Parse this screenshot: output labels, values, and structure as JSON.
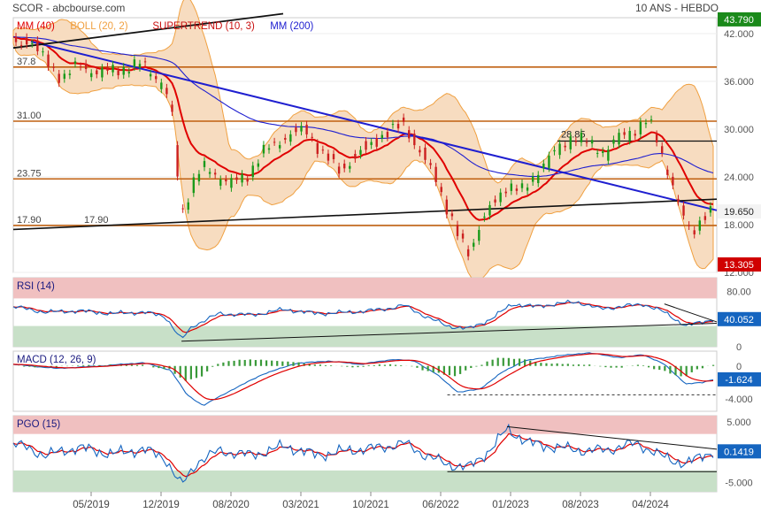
{
  "header": {
    "left": "SCOR - abcbourse.com",
    "right": "10 ANS - HEBDO"
  },
  "colors": {
    "mm40": "#e00000",
    "boll": "#f0a040",
    "boll_fill": "#f7dcc0",
    "supertrend": "#c81010",
    "mm200": "#1f1fd0",
    "price_box": "#1a8a1a",
    "low_box": "#d00000",
    "rsi": "#1565c0",
    "macd": "#1565c0",
    "signal": "#e00000",
    "hist": "#3a9a3a",
    "upper_band": "#f0c0c0",
    "lower_band": "#c8e0c8",
    "horizontal": "#c06010",
    "trend": "#111111",
    "candle_up": "#1a9a1a",
    "candle_dn": "#cc2020"
  },
  "chart_data": [
    {
      "type": "candlestick",
      "legend": [
        "MM (40)",
        "BOLL (20, 2)",
        "SUPERTREND (10, 3)",
        "MM (200)"
      ],
      "y_ticks": [
        "42.000",
        "36.000",
        "30.000",
        "24.000",
        "18.000",
        "12.000"
      ],
      "ylim": [
        12,
        44
      ],
      "last_price": "19.650",
      "high_label": "43.790",
      "low_label": "13.305",
      "levels": [
        {
          "label": "37.8",
          "value": 37.8
        },
        {
          "label": "31.00",
          "value": 31.0
        },
        {
          "label": "23.75",
          "value": 23.75
        },
        {
          "label": "17.90",
          "value": 17.9
        }
      ],
      "level_label_mid": "17.90",
      "annotation": "28.85",
      "x_ticks": [
        "05/2019",
        "12/2019",
        "08/2020",
        "03/2021",
        "10/2021",
        "06/2022",
        "01/2023",
        "08/2023",
        "04/2024"
      ],
      "series": [
        {
          "t": 0,
          "v": 40.5
        },
        {
          "t": 3,
          "v": 41.5
        },
        {
          "t": 6,
          "v": 38.5
        },
        {
          "t": 9,
          "v": 36.5
        },
        {
          "t": 12,
          "v": 38
        },
        {
          "t": 16,
          "v": 37
        },
        {
          "t": 20,
          "v": 37.5
        },
        {
          "t": 24,
          "v": 38
        },
        {
          "t": 27,
          "v": 36
        },
        {
          "t": 29,
          "v": 33
        },
        {
          "t": 31,
          "v": 19
        },
        {
          "t": 33,
          "v": 23
        },
        {
          "t": 35,
          "v": 25
        },
        {
          "t": 38,
          "v": 24
        },
        {
          "t": 40,
          "v": 23
        },
        {
          "t": 43,
          "v": 24
        },
        {
          "t": 46,
          "v": 27
        },
        {
          "t": 50,
          "v": 29
        },
        {
          "t": 54,
          "v": 30
        },
        {
          "t": 57,
          "v": 27
        },
        {
          "t": 60,
          "v": 25
        },
        {
          "t": 64,
          "v": 27
        },
        {
          "t": 67,
          "v": 29
        },
        {
          "t": 70,
          "v": 30
        },
        {
          "t": 72,
          "v": 31
        },
        {
          "t": 75,
          "v": 27
        },
        {
          "t": 78,
          "v": 24
        },
        {
          "t": 80,
          "v": 20
        },
        {
          "t": 82,
          "v": 16.5
        },
        {
          "t": 84,
          "v": 14.5
        },
        {
          "t": 86,
          "v": 18
        },
        {
          "t": 88,
          "v": 20
        },
        {
          "t": 91,
          "v": 23
        },
        {
          "t": 94,
          "v": 22
        },
        {
          "t": 97,
          "v": 25
        },
        {
          "t": 100,
          "v": 27
        },
        {
          "t": 103,
          "v": 29
        },
        {
          "t": 106,
          "v": 28
        },
        {
          "t": 109,
          "v": 27
        },
        {
          "t": 112,
          "v": 29
        },
        {
          "t": 115,
          "v": 30
        },
        {
          "t": 117,
          "v": 31
        },
        {
          "t": 119,
          "v": 28
        },
        {
          "t": 121,
          "v": 24
        },
        {
          "t": 123,
          "v": 19.5
        },
        {
          "t": 125,
          "v": 17
        },
        {
          "t": 127,
          "v": 19
        },
        {
          "t": 129,
          "v": 19.65
        }
      ]
    },
    {
      "type": "line",
      "name": "RSI (14)",
      "y_ticks": [
        "80.00",
        "0"
      ],
      "ylim": [
        0,
        100
      ],
      "last_value": "40.052",
      "series": [
        {
          "t": 0,
          "v": 58
        },
        {
          "t": 6,
          "v": 50
        },
        {
          "t": 12,
          "v": 52
        },
        {
          "t": 18,
          "v": 48
        },
        {
          "t": 24,
          "v": 50
        },
        {
          "t": 28,
          "v": 44
        },
        {
          "t": 31,
          "v": 10
        },
        {
          "t": 33,
          "v": 30
        },
        {
          "t": 38,
          "v": 48
        },
        {
          "t": 44,
          "v": 46
        },
        {
          "t": 50,
          "v": 54
        },
        {
          "t": 56,
          "v": 48
        },
        {
          "t": 62,
          "v": 50
        },
        {
          "t": 68,
          "v": 54
        },
        {
          "t": 72,
          "v": 60
        },
        {
          "t": 76,
          "v": 44
        },
        {
          "t": 80,
          "v": 30
        },
        {
          "t": 84,
          "v": 26
        },
        {
          "t": 88,
          "v": 40
        },
        {
          "t": 92,
          "v": 62
        },
        {
          "t": 96,
          "v": 58
        },
        {
          "t": 100,
          "v": 62
        },
        {
          "t": 104,
          "v": 65
        },
        {
          "t": 108,
          "v": 55
        },
        {
          "t": 112,
          "v": 58
        },
        {
          "t": 116,
          "v": 62
        },
        {
          "t": 120,
          "v": 50
        },
        {
          "t": 124,
          "v": 30
        },
        {
          "t": 127,
          "v": 36
        },
        {
          "t": 129,
          "v": 40
        }
      ]
    },
    {
      "type": "line",
      "name": "MACD (12, 26, 9)",
      "y_ticks": [
        "0",
        "-4.000"
      ],
      "ylim": [
        -5.5,
        1.8
      ],
      "last_value": "-1.624",
      "series": [
        {
          "t": 0,
          "v": 0.2
        },
        {
          "t": 8,
          "v": -0.3
        },
        {
          "t": 16,
          "v": 0.0
        },
        {
          "t": 24,
          "v": 0.4
        },
        {
          "t": 29,
          "v": -0.5
        },
        {
          "t": 32,
          "v": -3.5
        },
        {
          "t": 35,
          "v": -4.8
        },
        {
          "t": 40,
          "v": -3.0
        },
        {
          "t": 46,
          "v": -1.0
        },
        {
          "t": 52,
          "v": 0.3
        },
        {
          "t": 58,
          "v": 0.6
        },
        {
          "t": 64,
          "v": 0.2
        },
        {
          "t": 70,
          "v": 0.8
        },
        {
          "t": 74,
          "v": 0.6
        },
        {
          "t": 78,
          "v": -1.0
        },
        {
          "t": 82,
          "v": -3.2
        },
        {
          "t": 86,
          "v": -2.8
        },
        {
          "t": 90,
          "v": -0.8
        },
        {
          "t": 94,
          "v": 0.6
        },
        {
          "t": 100,
          "v": 1.2
        },
        {
          "t": 106,
          "v": 1.6
        },
        {
          "t": 112,
          "v": 1.0
        },
        {
          "t": 116,
          "v": 1.4
        },
        {
          "t": 120,
          "v": 0.2
        },
        {
          "t": 124,
          "v": -2.2
        },
        {
          "t": 127,
          "v": -2.0
        },
        {
          "t": 129,
          "v": -1.624
        }
      ]
    },
    {
      "type": "line",
      "name": "PGO (15)",
      "y_ticks": [
        "5.000",
        "0",
        "-5.000"
      ],
      "ylim": [
        -6.5,
        6
      ],
      "last_value": "0.1419",
      "series": [
        {
          "t": 0,
          "v": 1.5
        },
        {
          "t": 6,
          "v": -0.5
        },
        {
          "t": 12,
          "v": 0.8
        },
        {
          "t": 18,
          "v": -0.3
        },
        {
          "t": 24,
          "v": 0.5
        },
        {
          "t": 28,
          "v": -1.0
        },
        {
          "t": 31,
          "v": -5.5
        },
        {
          "t": 34,
          "v": -1.5
        },
        {
          "t": 38,
          "v": 0.2
        },
        {
          "t": 44,
          "v": -0.5
        },
        {
          "t": 50,
          "v": 1.0
        },
        {
          "t": 56,
          "v": -0.5
        },
        {
          "t": 62,
          "v": 0.3
        },
        {
          "t": 68,
          "v": 0.8
        },
        {
          "t": 72,
          "v": 1.5
        },
        {
          "t": 76,
          "v": -0.5
        },
        {
          "t": 80,
          "v": -2.0
        },
        {
          "t": 84,
          "v": -2.5
        },
        {
          "t": 88,
          "v": 0.5
        },
        {
          "t": 91,
          "v": 3.8
        },
        {
          "t": 95,
          "v": 1.5
        },
        {
          "t": 100,
          "v": 0.8
        },
        {
          "t": 106,
          "v": 0.2
        },
        {
          "t": 110,
          "v": 0.5
        },
        {
          "t": 115,
          "v": 1.5
        },
        {
          "t": 119,
          "v": -0.5
        },
        {
          "t": 124,
          "v": -2.0
        },
        {
          "t": 127,
          "v": -0.5
        },
        {
          "t": 129,
          "v": 0.14
        }
      ]
    }
  ]
}
